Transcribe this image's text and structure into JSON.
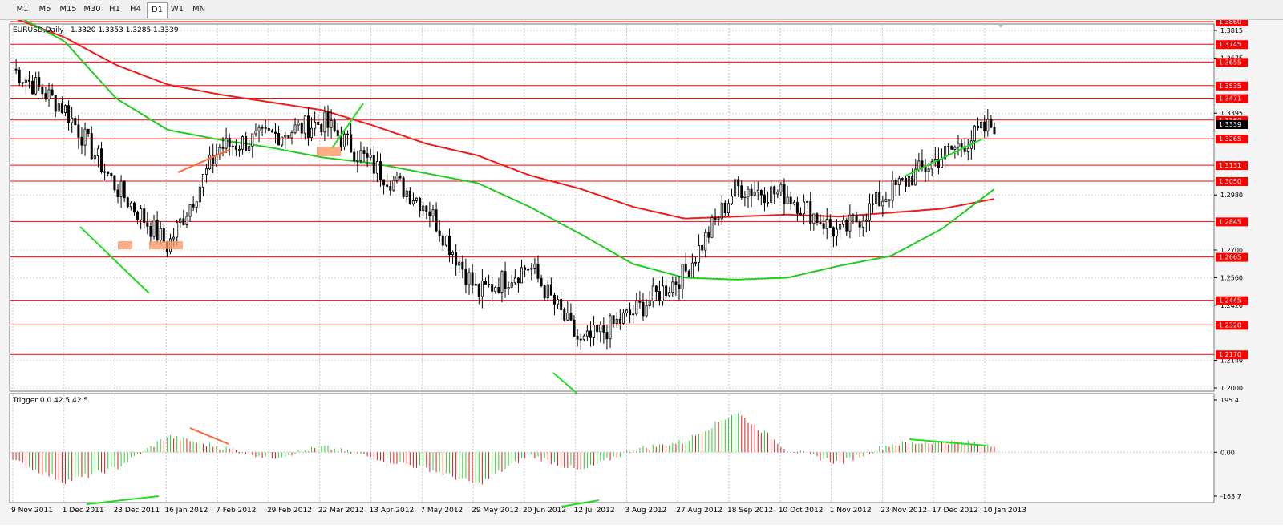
{
  "toolbar": {
    "timeframes": [
      "M1",
      "M5",
      "M15",
      "M30",
      "H1",
      "H4",
      "D1",
      "W1",
      "MN"
    ],
    "active": "D1"
  },
  "main": {
    "symbol_label": "EURUSD,Daily",
    "ohlc": "1.3320 1.3353 1.3285 1.3339",
    "current_price": "1.3339",
    "axis_labels": [
      "1.3815",
      "1.3675",
      "1.3395",
      "1.2980",
      "1.2700",
      "1.2560",
      "1.2420",
      "1.2140",
      "1.2000"
    ],
    "levels": [
      "1.3860",
      "1.3745",
      "1.3655",
      "1.3535",
      "1.3471",
      "1.3360",
      "1.3265",
      "1.3131",
      "1.3050",
      "1.2845",
      "1.2665",
      "1.2445",
      "1.2320",
      "1.2170"
    ],
    "level_color": "#ff0000",
    "price_min": 1.2,
    "price_max": 1.3815
  },
  "indicator": {
    "label": "Trigger 0.0 42.5 42.5",
    "axis_labels": [
      "195.4",
      "0.00",
      "-163.7"
    ],
    "max": 195.4,
    "min": -163.7
  },
  "xaxis": {
    "dates": [
      "9 Nov 2011",
      "1 Dec 2011",
      "23 Dec 2011",
      "16 Jan 2012",
      "7 Feb 2012",
      "29 Feb 2012",
      "22 Mar 2012",
      "13 Apr 2012",
      "7 May 2012",
      "29 May 2012",
      "20 Jun 2012",
      "12 Jul 2012",
      "3 Aug 2012",
      "27 Aug 2012",
      "18 Sep 2012",
      "10 Oct 2012",
      "1 Nov 2012",
      "23 Nov 2012",
      "17 Dec 2012",
      "10 Jan 2013"
    ]
  },
  "chart_data": [
    {
      "type": "candlestick",
      "title": "EURUSD,Daily",
      "x": [
        "9 Nov 2011",
        "1 Dec 2011",
        "23 Dec 2011",
        "16 Jan 2012",
        "7 Feb 2012",
        "29 Feb 2012",
        "22 Mar 2012",
        "13 Apr 2012",
        "7 May 2012",
        "29 May 2012",
        "20 Jun 2012",
        "12 Jul 2012",
        "3 Aug 2012",
        "27 Aug 2012",
        "18 Sep 2012",
        "10 Oct 2012",
        "1 Nov 2012",
        "23 Nov 2012",
        "17 Dec 2012",
        "10 Jan 2013"
      ],
      "close": [
        1.362,
        1.342,
        1.302,
        1.272,
        1.322,
        1.328,
        1.335,
        1.312,
        1.293,
        1.248,
        1.262,
        1.222,
        1.238,
        1.258,
        1.302,
        1.298,
        1.278,
        1.3,
        1.318,
        1.334
      ],
      "ma_red": [
        1.388,
        1.378,
        1.364,
        1.354,
        1.349,
        1.345,
        1.341,
        1.333,
        1.324,
        1.318,
        1.308,
        1.301,
        1.292,
        1.286,
        1.287,
        1.288,
        1.287,
        1.289,
        1.291,
        1.296
      ],
      "ma_green": [
        1.39,
        1.376,
        1.347,
        1.331,
        1.326,
        1.322,
        1.317,
        1.314,
        1.309,
        1.304,
        1.292,
        1.278,
        1.263,
        1.256,
        1.255,
        1.256,
        1.262,
        1.267,
        1.281,
        1.301
      ],
      "ylim": [
        1.2,
        1.3815
      ],
      "levels": [
        1.386,
        1.3745,
        1.3655,
        1.3535,
        1.3471,
        1.336,
        1.3265,
        1.3131,
        1.305,
        1.2845,
        1.2665,
        1.2445,
        1.232,
        1.217
      ],
      "grid": true
    },
    {
      "type": "bar",
      "title": "Trigger 0.0 42.5 42.5",
      "categories": [
        "9 Nov 2011",
        "1 Dec 2011",
        "23 Dec 2011",
        "16 Jan 2012",
        "7 Feb 2012",
        "29 Feb 2012",
        "22 Mar 2012",
        "13 Apr 2012",
        "7 May 2012",
        "29 May 2012",
        "20 Jun 2012",
        "12 Jul 2012",
        "3 Aug 2012",
        "27 Aug 2012",
        "18 Sep 2012",
        "10 Oct 2012",
        "1 Nov 2012",
        "23 Nov 2012",
        "17 Dec 2012",
        "10 Jan 2013"
      ],
      "values": [
        -30,
        -110,
        -60,
        60,
        20,
        -20,
        20,
        -20,
        -60,
        -120,
        -10,
        -70,
        10,
        40,
        150,
        10,
        -40,
        30,
        40,
        30
      ],
      "ylim": [
        -163.7,
        195.4
      ]
    }
  ]
}
